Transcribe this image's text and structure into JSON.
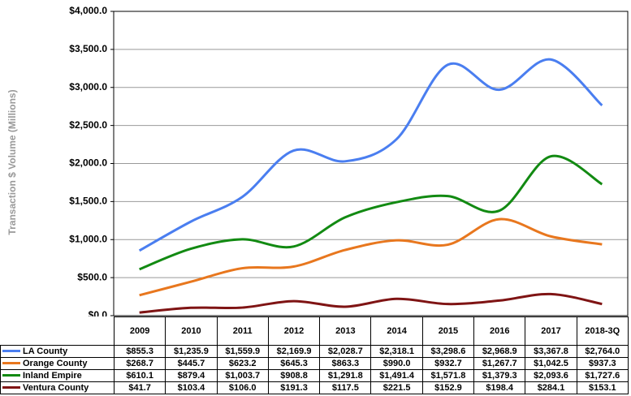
{
  "chart_data": {
    "type": "line",
    "y_label": "Transaction $ Volume (Millions)",
    "categories": [
      "2009",
      "2010",
      "2011",
      "2012",
      "2013",
      "2014",
      "2015",
      "2016",
      "2017",
      "2018-3Q"
    ],
    "series": [
      {
        "name": "LA County",
        "color": "#4a7ef0",
        "values": [
          855.3,
          1235.9,
          1559.9,
          2169.9,
          2028.7,
          2318.1,
          3298.6,
          2968.9,
          3367.8,
          2764.0
        ],
        "value_labels": [
          "$855.3",
          "$1,235.9",
          "$1,559.9",
          "$2,169.9",
          "$2,028.7",
          "$2,318.1",
          "$3,298.6",
          "$2,968.9",
          "$3,367.8",
          "$2,764.0"
        ]
      },
      {
        "name": "Orange County",
        "color": "#e8771e",
        "values": [
          268.7,
          445.7,
          623.2,
          645.3,
          863.3,
          990.0,
          932.7,
          1267.7,
          1042.5,
          937.3
        ],
        "value_labels": [
          "$268.7",
          "$445.7",
          "$623.2",
          "$645.3",
          "$863.3",
          "$990.0",
          "$932.7",
          "$1,267.7",
          "$1,042.5",
          "$937.3"
        ]
      },
      {
        "name": "Inland Empire",
        "color": "#128a12",
        "values": [
          610.1,
          879.4,
          1003.7,
          908.8,
          1291.8,
          1491.4,
          1571.8,
          1379.3,
          2093.6,
          1727.6
        ],
        "value_labels": [
          "$610.1",
          "$879.4",
          "$1,003.7",
          "$908.8",
          "$1,291.8",
          "$1,491.4",
          "$1,571.8",
          "$1,379.3",
          "$2,093.6",
          "$1,727.6"
        ]
      },
      {
        "name": "Ventura County",
        "color": "#7f1414",
        "values": [
          41.7,
          103.4,
          106.0,
          191.3,
          117.5,
          221.5,
          152.9,
          198.4,
          284.1,
          153.1
        ],
        "value_labels": [
          "$41.7",
          "$103.4",
          "$106.0",
          "$191.3",
          "$117.5",
          "$221.5",
          "$152.9",
          "$198.4",
          "$284.1",
          "$153.1"
        ]
      }
    ],
    "ylim": [
      0,
      4000
    ],
    "yticks": [
      {
        "value": 0,
        "label": "$0.0"
      },
      {
        "value": 500,
        "label": "$500.0"
      },
      {
        "value": 1000,
        "label": "$1,000.0"
      },
      {
        "value": 1500,
        "label": "$1,500.0"
      },
      {
        "value": 2000,
        "label": "$2,000.0"
      },
      {
        "value": 2500,
        "label": "$2,500.0"
      },
      {
        "value": 3000,
        "label": "$3,000.0"
      },
      {
        "value": 3500,
        "label": "$3,500.0"
      },
      {
        "value": 4000,
        "label": "$4,000.0"
      }
    ],
    "grid": true
  }
}
